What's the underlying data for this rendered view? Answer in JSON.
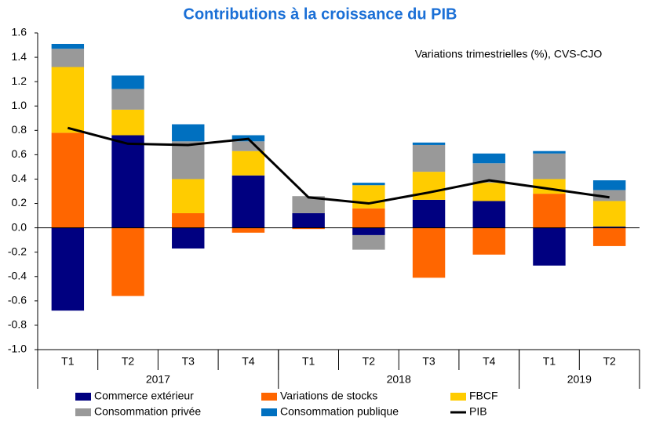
{
  "chart_data": {
    "type": "bar",
    "stacked": true,
    "title": "Contributions à la croissance du PIB",
    "annotation": "Variations trimestrielles (%), CVS-CJO",
    "categories": [
      "T1",
      "T2",
      "T3",
      "T4",
      "T1",
      "T2",
      "T3",
      "T4",
      "T1",
      "T2"
    ],
    "groups": [
      {
        "label": "2017",
        "span": 4
      },
      {
        "label": "2018",
        "span": 4
      },
      {
        "label": "2019",
        "span": 2
      }
    ],
    "series": [
      {
        "name": "Commerce extérieur",
        "color": "#000080",
        "values": [
          -0.68,
          0.76,
          -0.17,
          0.43,
          0.12,
          -0.06,
          0.23,
          0.22,
          -0.31,
          0.01
        ]
      },
      {
        "name": "Variations de stocks",
        "color": "#ff6600",
        "values": [
          0.78,
          -0.56,
          0.12,
          -0.04,
          -0.01,
          0.16,
          -0.41,
          -0.22,
          0.28,
          -0.15
        ]
      },
      {
        "name": "FBCF",
        "color": "#ffcc00",
        "values": [
          0.54,
          0.21,
          0.28,
          0.2,
          0,
          0.19,
          0.23,
          0.15,
          0.12,
          0.21
        ]
      },
      {
        "name": "Consommation privée",
        "color": "#999999",
        "values": [
          0.15,
          0.17,
          0.31,
          0.08,
          0.14,
          -0.12,
          0.22,
          0.16,
          0.21,
          0.09
        ]
      },
      {
        "name": "Consommation publique",
        "color": "#0070c0",
        "values": [
          0.04,
          0.11,
          0.14,
          0.05,
          0,
          0.02,
          0.02,
          0.08,
          0.02,
          0.08
        ]
      },
      {
        "name": "PIB",
        "color": "#000000",
        "type": "line",
        "values": [
          0.82,
          0.69,
          0.68,
          0.73,
          0.25,
          0.2,
          0.29,
          0.39,
          0.32,
          0.25
        ]
      }
    ],
    "ylim": [
      -1.0,
      1.6
    ],
    "yticks": [
      {
        "value": -1.0,
        "label": "-1.0"
      },
      -0.8,
      -0.6,
      -0.4,
      -0.2,
      {
        "value": 0,
        "label": "0.0"
      },
      0.2,
      0.4,
      0.6,
      0.8,
      {
        "value": 1.0,
        "label": "1.0"
      },
      1.2,
      1.4,
      1.6
    ]
  }
}
